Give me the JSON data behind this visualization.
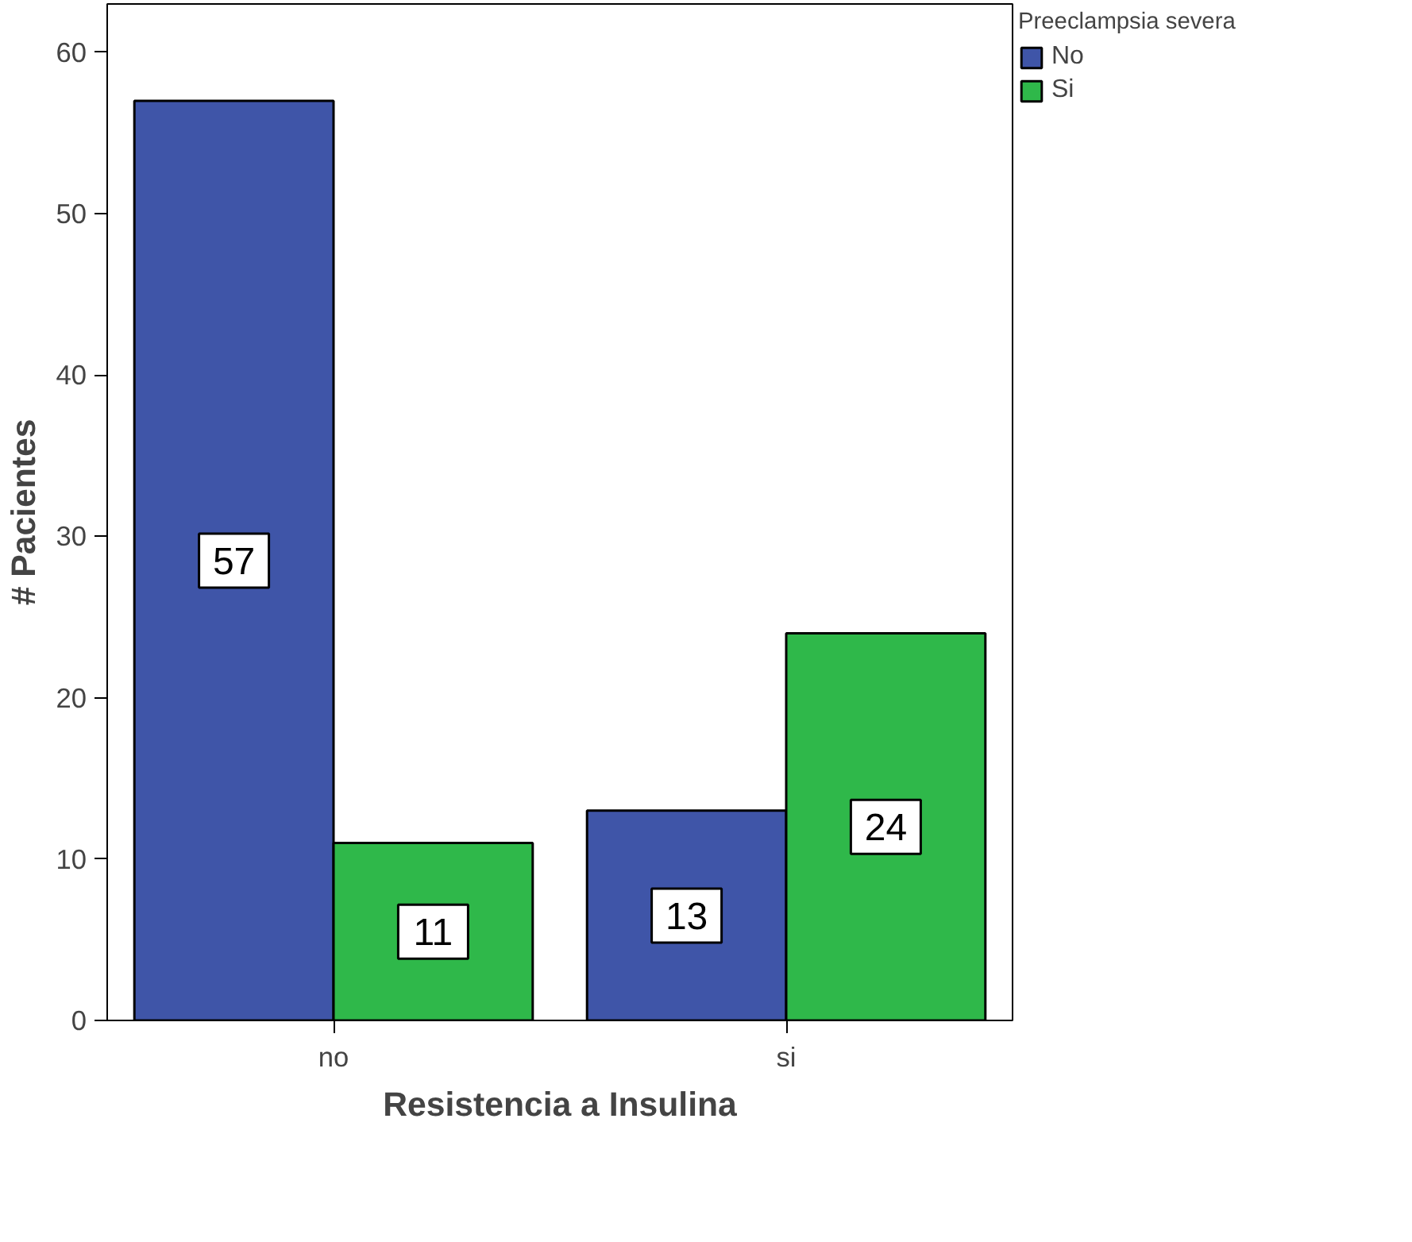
{
  "chart_data": {
    "type": "bar",
    "xlabel": "Resistencia a Insulina",
    "ylabel": "# Pacientes",
    "legend_title": "Preeclampsia severa",
    "categories": [
      "no",
      "si"
    ],
    "series": [
      {
        "name": "No",
        "color": "#3f55a8",
        "values": [
          57,
          13
        ]
      },
      {
        "name": "Si",
        "color": "#2fb84a",
        "values": [
          11,
          24
        ]
      }
    ],
    "ylim": [
      0,
      63
    ],
    "yticks": [
      0,
      10,
      20,
      30,
      40,
      50,
      60
    ],
    "grid": false,
    "legend": "top right",
    "data_labels": true
  }
}
